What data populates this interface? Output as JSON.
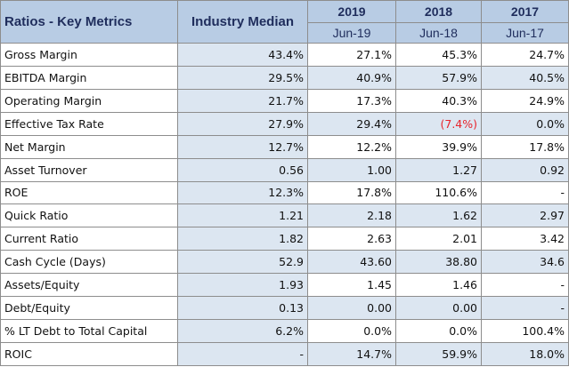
{
  "table": {
    "title": "Ratios - Key Metrics",
    "median_header": "Industry Median",
    "years": [
      "2019",
      "2018",
      "2017"
    ],
    "periods": [
      "Jun-19",
      "Jun-18",
      "Jun-17"
    ],
    "rows": [
      {
        "label": "Gross Margin",
        "median": "43.4%",
        "v2019": "27.1%",
        "v2018": "45.3%",
        "v2017": "24.7%"
      },
      {
        "label": "EBITDA Margin",
        "median": "29.5%",
        "v2019": "40.9%",
        "v2018": "57.9%",
        "v2017": "40.5%"
      },
      {
        "label": "Operating Margin",
        "median": "21.7%",
        "v2019": "17.3%",
        "v2018": "40.3%",
        "v2017": "24.9%"
      },
      {
        "label": "Effective Tax Rate",
        "median": "27.9%",
        "v2019": "29.4%",
        "v2018": "(7.4%)",
        "v2017": "0.0%"
      },
      {
        "label": "Net Margin",
        "median": "12.7%",
        "v2019": "12.2%",
        "v2018": "39.9%",
        "v2017": "17.8%"
      },
      {
        "label": "Asset Turnover",
        "median": "0.56",
        "v2019": "1.00",
        "v2018": "1.27",
        "v2017": "0.92"
      },
      {
        "label": "ROE",
        "median": "12.3%",
        "v2019": "17.8%",
        "v2018": "110.6%",
        "v2017": "-"
      },
      {
        "label": "Quick Ratio",
        "median": "1.21",
        "v2019": "2.18",
        "v2018": "1.62",
        "v2017": "2.97"
      },
      {
        "label": "Current Ratio",
        "median": "1.82",
        "v2019": "2.63",
        "v2018": "2.01",
        "v2017": "3.42"
      },
      {
        "label": "Cash Cycle (Days)",
        "median": "52.9",
        "v2019": "43.60",
        "v2018": "38.80",
        "v2017": "34.6"
      },
      {
        "label": "Assets/Equity",
        "median": "1.93",
        "v2019": "1.45",
        "v2018": "1.46",
        "v2017": "-"
      },
      {
        "label": "Debt/Equity",
        "median": "0.13",
        "v2019": "0.00",
        "v2018": "0.00",
        "v2017": "-"
      },
      {
        "label": "% LT Debt to Total Capital",
        "median": "6.2%",
        "v2019": "0.0%",
        "v2018": "0.0%",
        "v2017": "100.4%"
      },
      {
        "label": "ROIC",
        "median": "-",
        "v2019": "14.7%",
        "v2018": "59.9%",
        "v2017": "18.0%"
      }
    ]
  },
  "colors": {
    "header_bg": "#b8cce4",
    "header_text": "#1f2d5c",
    "median_bg": "#dce6f1",
    "alt_bg": "#dce6f1",
    "negative_text": "#e8242c",
    "border": "#8d8d8d"
  }
}
